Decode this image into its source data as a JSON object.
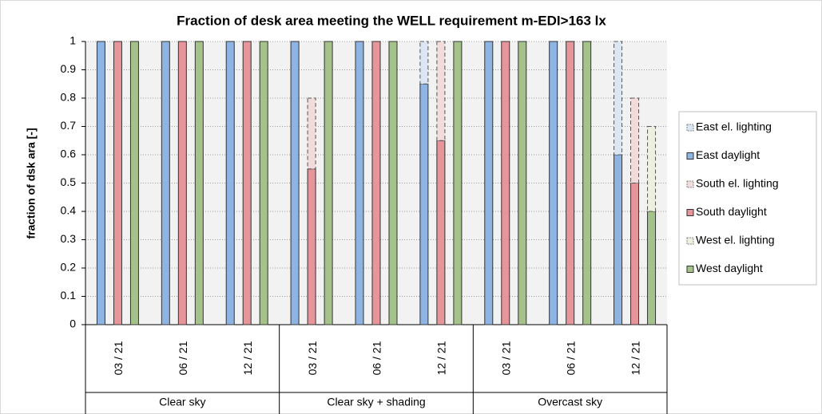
{
  "chart_data": {
    "type": "stacked_grouped_bar",
    "title": "Fraction of desk area meeting the WELL requirement m-EDI>163 lx",
    "y_label": "fraction of dsk ara  [-]",
    "categories": [
      "03 / 21",
      "06 / 21",
      "12 / 21",
      "03 / 21",
      "06 / 21",
      "12 / 21",
      "03 / 21",
      "06 / 21",
      "12 / 21"
    ],
    "category_groups": [
      {
        "name": "Clear sky",
        "size": 3
      },
      {
        "name": "Clear sky + shading",
        "size": 3
      },
      {
        "name": "Overcast sky",
        "size": 3
      }
    ],
    "series": [
      {
        "name": "East el. lighting",
        "color": "#dce6f2",
        "stack": 0,
        "dashed": true,
        "values": [
          0,
          0,
          0,
          0,
          0,
          0.15,
          0,
          0,
          0.4
        ]
      },
      {
        "name": "East daylight",
        "color": "#8db4e2",
        "stack": 0,
        "dashed": false,
        "values": [
          1,
          1,
          1,
          1,
          1,
          0.85,
          1,
          1,
          0.6
        ]
      },
      {
        "name": "South el. lighting",
        "color": "#f2dcdb",
        "stack": 1,
        "dashed": true,
        "values": [
          0,
          0,
          0,
          0.25,
          0,
          0.35,
          0,
          0,
          0.3
        ]
      },
      {
        "name": "South daylight",
        "color": "#e6959a",
        "stack": 1,
        "dashed": false,
        "values": [
          1,
          1,
          1,
          0.55,
          1,
          0.65,
          1,
          1,
          0.5
        ]
      },
      {
        "name": "West el. lighting",
        "color": "#ebf1de",
        "stack": 2,
        "dashed": true,
        "values": [
          0,
          0,
          0,
          0,
          0,
          0,
          0,
          0,
          0.3
        ]
      },
      {
        "name": "West daylight",
        "color": "#a5c28a",
        "stack": 2,
        "dashed": false,
        "values": [
          1,
          1,
          1,
          1,
          1,
          1,
          1,
          1,
          0.4
        ]
      }
    ],
    "ylim": [
      0,
      1
    ],
    "yticks": [
      0,
      0.1,
      0.2,
      0.3,
      0.4,
      0.5,
      0.6,
      0.7,
      0.8,
      0.9,
      1
    ],
    "grid": true,
    "legend": "right"
  }
}
